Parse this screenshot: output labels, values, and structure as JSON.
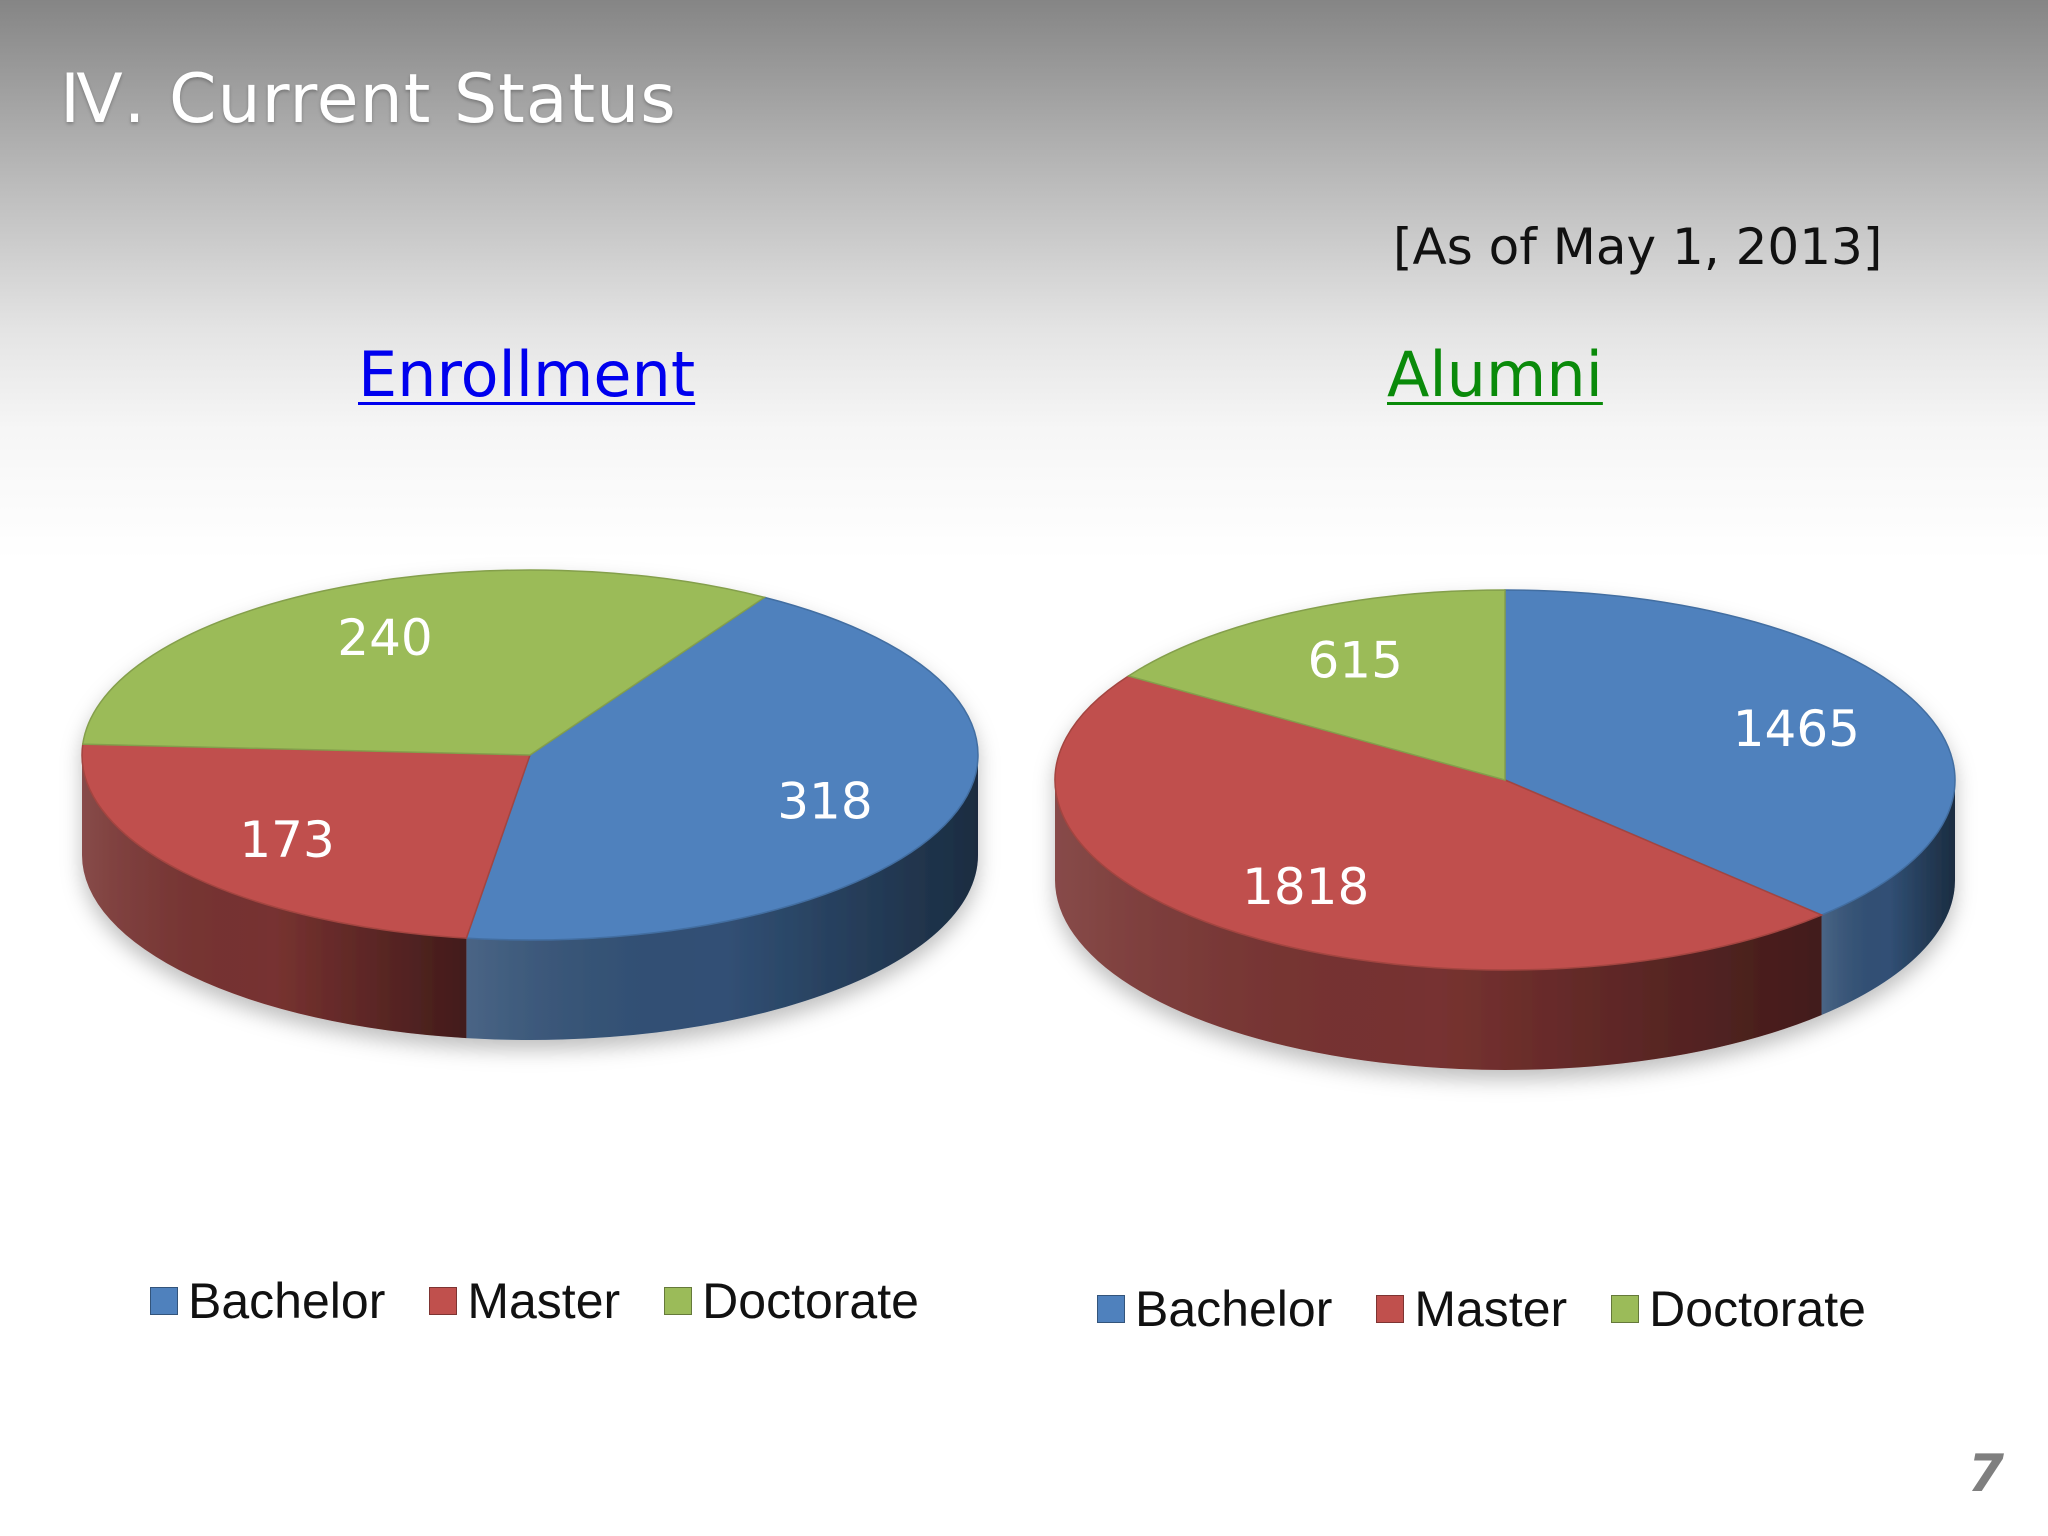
{
  "slide": {
    "title": "Ⅳ. Current Status",
    "as_of": "[As of May 1, 2013]",
    "page_number": "7"
  },
  "colors": {
    "bachelor": "#4f81bd",
    "master": "#c0504d",
    "doctorate": "#9bbb59",
    "enrollment_title": "#0000ee",
    "alumni_title": "#0a8a0a"
  },
  "chart_data": [
    {
      "type": "pie",
      "title": "Enrollment",
      "categories": [
        "Bachelor",
        "Master",
        "Doctorate"
      ],
      "values": [
        318,
        173,
        240
      ],
      "legend_position": "bottom"
    },
    {
      "type": "pie",
      "title": "Alumni",
      "categories": [
        "Bachelor",
        "Master",
        "Doctorate"
      ],
      "values": [
        1465,
        1818,
        615
      ],
      "legend_position": "bottom"
    }
  ]
}
